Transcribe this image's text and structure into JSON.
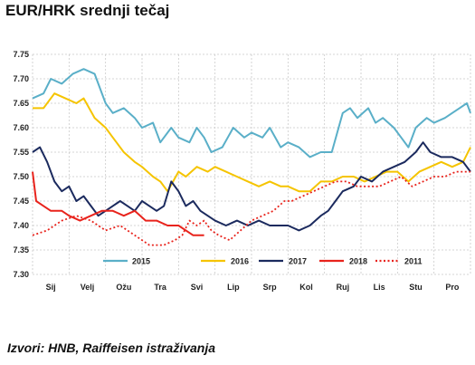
{
  "title": "EUR/HRK srednji tečaj",
  "source": "Izvori: HNB, Raiffeisen istraživanja",
  "chart_data": {
    "type": "line",
    "title": "EUR/HRK srednji tečaj",
    "ylim": [
      7.3,
      7.75
    ],
    "y_ticks": [
      "7.30",
      "7.35",
      "7.40",
      "7.45",
      "7.50",
      "7.55",
      "7.60",
      "7.65",
      "7.70",
      "7.75"
    ],
    "x_tick_labels": [
      "Sij",
      "Velj",
      "Ožu",
      "Tra",
      "Svi",
      "Lip",
      "Srp",
      "Kol",
      "Ruj",
      "Lis",
      "Stu",
      "Pro"
    ],
    "x_unit": "month of year (0 = 1 Jan, 12 = 31 Dec)",
    "grid": true,
    "legend_position": "bottom",
    "series": [
      {
        "name": "2015",
        "color": "#5AAFC8",
        "dash": "solid",
        "points": [
          [
            0,
            7.66
          ],
          [
            0.3,
            7.67
          ],
          [
            0.5,
            7.7
          ],
          [
            0.8,
            7.69
          ],
          [
            1.1,
            7.71
          ],
          [
            1.4,
            7.72
          ],
          [
            1.7,
            7.71
          ],
          [
            2.0,
            7.65
          ],
          [
            2.2,
            7.63
          ],
          [
            2.5,
            7.64
          ],
          [
            2.8,
            7.62
          ],
          [
            3.0,
            7.6
          ],
          [
            3.3,
            7.61
          ],
          [
            3.5,
            7.57
          ],
          [
            3.8,
            7.6
          ],
          [
            4.0,
            7.58
          ],
          [
            4.3,
            7.57
          ],
          [
            4.5,
            7.6
          ],
          [
            4.7,
            7.58
          ],
          [
            4.9,
            7.55
          ],
          [
            5.2,
            7.56
          ],
          [
            5.5,
            7.6
          ],
          [
            5.8,
            7.58
          ],
          [
            6.0,
            7.59
          ],
          [
            6.3,
            7.58
          ],
          [
            6.5,
            7.6
          ],
          [
            6.8,
            7.56
          ],
          [
            7.0,
            7.57
          ],
          [
            7.3,
            7.56
          ],
          [
            7.6,
            7.54
          ],
          [
            7.9,
            7.55
          ],
          [
            8.2,
            7.55
          ],
          [
            8.5,
            7.63
          ],
          [
            8.7,
            7.64
          ],
          [
            8.9,
            7.62
          ],
          [
            9.2,
            7.64
          ],
          [
            9.4,
            7.61
          ],
          [
            9.6,
            7.62
          ],
          [
            9.9,
            7.6
          ],
          [
            10.1,
            7.58
          ],
          [
            10.3,
            7.56
          ],
          [
            10.5,
            7.6
          ],
          [
            10.8,
            7.62
          ],
          [
            11.0,
            7.61
          ],
          [
            11.3,
            7.62
          ],
          [
            11.5,
            7.63
          ],
          [
            11.7,
            7.64
          ],
          [
            11.9,
            7.65
          ],
          [
            12.0,
            7.63
          ]
        ]
      },
      {
        "name": "2016",
        "color": "#F5C400",
        "dash": "solid",
        "points": [
          [
            0,
            7.64
          ],
          [
            0.3,
            7.64
          ],
          [
            0.6,
            7.67
          ],
          [
            0.9,
            7.66
          ],
          [
            1.2,
            7.65
          ],
          [
            1.4,
            7.66
          ],
          [
            1.7,
            7.62
          ],
          [
            2.0,
            7.6
          ],
          [
            2.2,
            7.58
          ],
          [
            2.5,
            7.55
          ],
          [
            2.8,
            7.53
          ],
          [
            3.0,
            7.52
          ],
          [
            3.3,
            7.5
          ],
          [
            3.5,
            7.49
          ],
          [
            3.7,
            7.47
          ],
          [
            4.0,
            7.51
          ],
          [
            4.2,
            7.5
          ],
          [
            4.5,
            7.52
          ],
          [
            4.8,
            7.51
          ],
          [
            5.0,
            7.52
          ],
          [
            5.3,
            7.51
          ],
          [
            5.6,
            7.5
          ],
          [
            5.9,
            7.49
          ],
          [
            6.2,
            7.48
          ],
          [
            6.5,
            7.49
          ],
          [
            6.8,
            7.48
          ],
          [
            7.0,
            7.48
          ],
          [
            7.3,
            7.47
          ],
          [
            7.6,
            7.47
          ],
          [
            7.9,
            7.49
          ],
          [
            8.2,
            7.49
          ],
          [
            8.5,
            7.5
          ],
          [
            8.8,
            7.5
          ],
          [
            9.1,
            7.49
          ],
          [
            9.4,
            7.5
          ],
          [
            9.7,
            7.51
          ],
          [
            10.0,
            7.51
          ],
          [
            10.3,
            7.49
          ],
          [
            10.6,
            7.51
          ],
          [
            10.9,
            7.52
          ],
          [
            11.2,
            7.53
          ],
          [
            11.5,
            7.52
          ],
          [
            11.8,
            7.53
          ],
          [
            12.0,
            7.56
          ]
        ]
      },
      {
        "name": "2017",
        "color": "#1B2A5E",
        "dash": "solid",
        "points": [
          [
            0,
            7.55
          ],
          [
            0.2,
            7.56
          ],
          [
            0.4,
            7.53
          ],
          [
            0.6,
            7.49
          ],
          [
            0.8,
            7.47
          ],
          [
            1.0,
            7.48
          ],
          [
            1.2,
            7.45
          ],
          [
            1.4,
            7.46
          ],
          [
            1.6,
            7.44
          ],
          [
            1.8,
            7.42
          ],
          [
            2.0,
            7.43
          ],
          [
            2.2,
            7.44
          ],
          [
            2.4,
            7.45
          ],
          [
            2.6,
            7.44
          ],
          [
            2.8,
            7.43
          ],
          [
            3.0,
            7.45
          ],
          [
            3.2,
            7.44
          ],
          [
            3.4,
            7.43
          ],
          [
            3.6,
            7.44
          ],
          [
            3.8,
            7.49
          ],
          [
            4.0,
            7.47
          ],
          [
            4.2,
            7.44
          ],
          [
            4.4,
            7.45
          ],
          [
            4.6,
            7.43
          ],
          [
            4.8,
            7.42
          ],
          [
            5.0,
            7.41
          ],
          [
            5.3,
            7.4
          ],
          [
            5.6,
            7.41
          ],
          [
            5.9,
            7.4
          ],
          [
            6.2,
            7.41
          ],
          [
            6.5,
            7.4
          ],
          [
            6.8,
            7.4
          ],
          [
            7.0,
            7.4
          ],
          [
            7.3,
            7.39
          ],
          [
            7.6,
            7.4
          ],
          [
            7.9,
            7.42
          ],
          [
            8.1,
            7.43
          ],
          [
            8.3,
            7.45
          ],
          [
            8.5,
            7.47
          ],
          [
            8.8,
            7.48
          ],
          [
            9.0,
            7.5
          ],
          [
            9.3,
            7.49
          ],
          [
            9.6,
            7.51
          ],
          [
            9.9,
            7.52
          ],
          [
            10.2,
            7.53
          ],
          [
            10.5,
            7.55
          ],
          [
            10.7,
            7.57
          ],
          [
            10.9,
            7.55
          ],
          [
            11.2,
            7.54
          ],
          [
            11.5,
            7.54
          ],
          [
            11.8,
            7.53
          ],
          [
            12.0,
            7.51
          ]
        ]
      },
      {
        "name": "2018",
        "color": "#E8231C",
        "dash": "solid",
        "points": [
          [
            0,
            7.51
          ],
          [
            0.1,
            7.45
          ],
          [
            0.3,
            7.44
          ],
          [
            0.5,
            7.43
          ],
          [
            0.8,
            7.43
          ],
          [
            1.0,
            7.42
          ],
          [
            1.3,
            7.41
          ],
          [
            1.6,
            7.42
          ],
          [
            1.9,
            7.43
          ],
          [
            2.2,
            7.43
          ],
          [
            2.5,
            7.42
          ],
          [
            2.8,
            7.43
          ],
          [
            3.1,
            7.41
          ],
          [
            3.4,
            7.41
          ],
          [
            3.7,
            7.4
          ],
          [
            4.0,
            7.4
          ],
          [
            4.2,
            7.39
          ],
          [
            4.4,
            7.38
          ],
          [
            4.6,
            7.38
          ],
          [
            4.7,
            7.38
          ]
        ]
      },
      {
        "name": "2011",
        "color": "#E8231C",
        "dash": "dotted",
        "points": [
          [
            0,
            7.38
          ],
          [
            0.4,
            7.39
          ],
          [
            0.8,
            7.41
          ],
          [
            1.2,
            7.42
          ],
          [
            1.6,
            7.41
          ],
          [
            2.0,
            7.39
          ],
          [
            2.4,
            7.4
          ],
          [
            2.8,
            7.38
          ],
          [
            3.2,
            7.36
          ],
          [
            3.6,
            7.36
          ],
          [
            3.9,
            7.37
          ],
          [
            4.1,
            7.38
          ],
          [
            4.3,
            7.41
          ],
          [
            4.5,
            7.4
          ],
          [
            4.7,
            7.41
          ],
          [
            4.9,
            7.39
          ],
          [
            5.1,
            7.38
          ],
          [
            5.4,
            7.37
          ],
          [
            5.7,
            7.39
          ],
          [
            6.0,
            7.41
          ],
          [
            6.3,
            7.42
          ],
          [
            6.6,
            7.43
          ],
          [
            6.9,
            7.45
          ],
          [
            7.1,
            7.45
          ],
          [
            7.4,
            7.46
          ],
          [
            7.7,
            7.47
          ],
          [
            8.0,
            7.48
          ],
          [
            8.3,
            7.49
          ],
          [
            8.6,
            7.49
          ],
          [
            8.9,
            7.48
          ],
          [
            9.2,
            7.48
          ],
          [
            9.5,
            7.48
          ],
          [
            9.8,
            7.49
          ],
          [
            10.1,
            7.5
          ],
          [
            10.4,
            7.48
          ],
          [
            10.7,
            7.49
          ],
          [
            11.0,
            7.5
          ],
          [
            11.3,
            7.5
          ],
          [
            11.6,
            7.51
          ],
          [
            12.0,
            7.51
          ]
        ]
      }
    ]
  }
}
